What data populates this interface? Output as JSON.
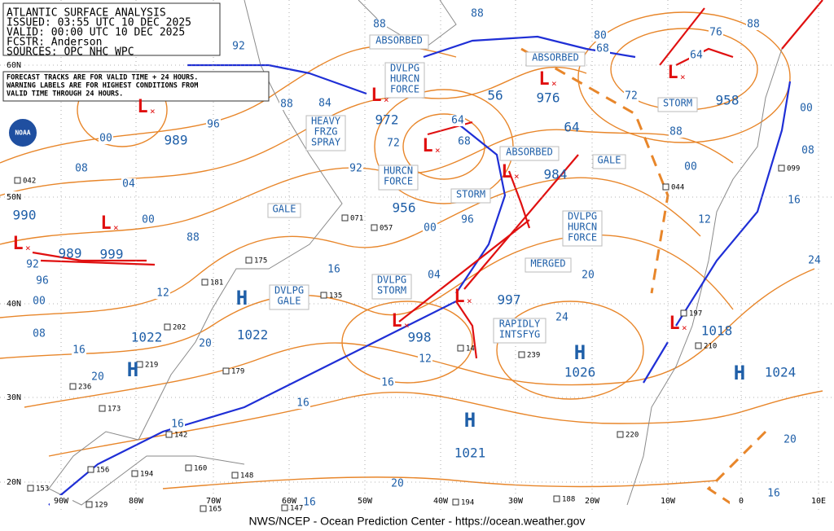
{
  "header": {
    "lines": [
      "ATLANTIC SURFACE ANALYSIS",
      "ISSUED: 03:55 UTC 10 DEC 2025",
      "VALID:  00:00 UTC 10 DEC 2025",
      "FCSTR:  Anderson",
      "SOURCES: OPC NHC WPC"
    ]
  },
  "note": {
    "lines": [
      "FORECAST TRACKS ARE FOR VALID TIME + 24 HOURS.",
      "WARNING LABELS ARE FOR HIGHEST CONDITIONS FROM",
      "VALID TIME THROUGH 24 HOURS."
    ]
  },
  "footer": "NWS/NCEP - Ocean Prediction Center - https://ocean.weather.gov",
  "logo": "NOAA",
  "lat_labels": [
    "60N",
    "50N",
    "40N",
    "30N",
    "20N"
  ],
  "lon_labels": [
    "90W",
    "80W",
    "70W",
    "60W",
    "50W",
    "40W",
    "30W",
    "20W",
    "10W",
    "0",
    "10E"
  ],
  "warnings": [
    [
      "ABSORBED"
    ],
    [
      "DVLPG",
      "HURCN",
      "FORCE"
    ],
    [
      "HEAVY",
      "FRZG",
      "SPRAY"
    ],
    [
      "ABSORBED"
    ],
    [
      "STORM"
    ],
    [
      "ABSORBED"
    ],
    [
      "HURCN",
      "FORCE"
    ],
    [
      "STORM"
    ],
    [
      "GALE"
    ],
    [
      "GALE"
    ],
    [
      "DVLPG",
      "HURCN",
      "FORCE"
    ],
    [
      "MERGED"
    ],
    [
      "DVLPG",
      "STORM"
    ],
    [
      "DVLPG",
      "GALE"
    ],
    [
      "RAPIDLY",
      "INTSFYG"
    ]
  ],
  "pressures": [
    "989",
    "990",
    "989",
    "999",
    "972",
    "56",
    "976",
    "64",
    "958",
    "984",
    "956",
    "997",
    "998",
    "1022",
    "1022",
    "1026",
    "1018",
    "1024",
    "1021"
  ],
  "highs": [
    "H",
    "H",
    "H",
    "H",
    "H"
  ],
  "lows": [
    "L",
    "L",
    "L",
    "L",
    "L",
    "L",
    "L",
    "L",
    "L",
    "L",
    "L"
  ],
  "isobar_labels": [
    "92",
    "88",
    "88",
    "80",
    "76",
    "88",
    "68",
    "64",
    "72",
    "00",
    "08",
    "88",
    "00",
    "16",
    "12",
    "24",
    "20",
    "24",
    "16",
    "04",
    "00",
    "96",
    "92",
    "84",
    "88",
    "96",
    "00",
    "04",
    "08",
    "00",
    "88",
    "92",
    "96",
    "00",
    "12",
    "08",
    "16",
    "20",
    "20",
    "16",
    "12",
    "16",
    "16",
    "20",
    "16",
    "20",
    "16",
    "64",
    "68",
    "72"
  ],
  "stations": [
    "042",
    "071",
    "057",
    "175",
    "181",
    "135",
    "202",
    "219",
    "179",
    "236",
    "173",
    "142",
    "156",
    "194",
    "160",
    "148",
    "153",
    "129",
    "165",
    "147",
    "14",
    "239",
    "194",
    "188",
    "220",
    "197",
    "210",
    "044",
    "099"
  ]
}
